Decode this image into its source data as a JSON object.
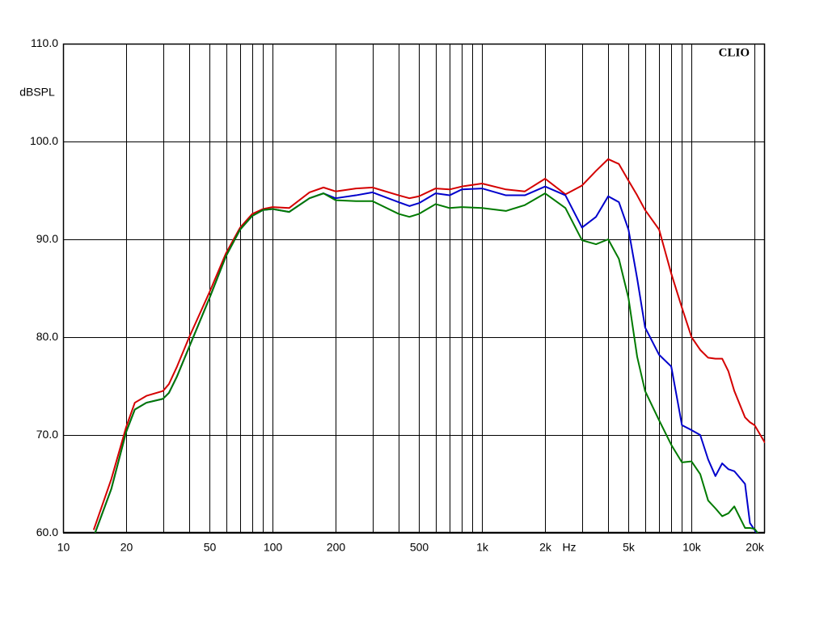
{
  "chart_data": {
    "type": "line",
    "xscale": "log",
    "grid": true,
    "ylabel": "dBSPL",
    "xunit": "Hz",
    "watermark": "CLIO",
    "xlim": [
      10,
      22400
    ],
    "ylim": [
      60,
      110
    ],
    "xticks": [
      10,
      20,
      50,
      100,
      200,
      500,
      {
        "value": 1000,
        "label": "1k"
      },
      {
        "value": 2000,
        "label": "2k"
      },
      {
        "value": 5000,
        "label": "5k"
      },
      {
        "value": 10000,
        "label": "10k"
      },
      {
        "value": 20000,
        "label": "20k"
      }
    ],
    "xgrid": [
      30,
      40,
      60,
      70,
      80,
      90,
      300,
      400,
      600,
      700,
      800,
      900,
      3000,
      4000,
      6000,
      7000,
      8000,
      9000
    ],
    "yticks": [
      {
        "value": 60,
        "label": "60.0"
      },
      {
        "value": 70,
        "label": "70.0"
      },
      {
        "value": 80,
        "label": "80.0"
      },
      {
        "value": 90,
        "label": "90.0"
      },
      {
        "value": 100,
        "label": "100.0"
      },
      {
        "value": 110,
        "label": "110.0"
      }
    ],
    "x": [
      14,
      17,
      20,
      22,
      25,
      30,
      32,
      35,
      40,
      50,
      60,
      70,
      80,
      90,
      100,
      120,
      150,
      175,
      200,
      250,
      300,
      400,
      450,
      500,
      600,
      700,
      800,
      1000,
      1300,
      1600,
      2000,
      2500,
      3000,
      3500,
      4000,
      4500,
      5000,
      5500,
      6000,
      7000,
      8000,
      9000,
      10000,
      11000,
      12000,
      13000,
      14000,
      15000,
      16000,
      18000,
      19000,
      20000,
      22400
    ],
    "series": [
      {
        "color": "#d40000",
        "values": [
          60.3,
          65.5,
          70.8,
          73.3,
          74,
          74.5,
          75.2,
          77,
          80,
          84.6,
          88.6,
          91.2,
          92.6,
          93.1,
          93.3,
          93.2,
          94.8,
          95.3,
          94.9,
          95.2,
          95.3,
          94.5,
          94.2,
          94.4,
          95.2,
          95.1,
          95.4,
          95.7,
          95.1,
          94.9,
          96.2,
          94.6,
          95.5,
          97,
          98.2,
          97.7,
          96,
          94.5,
          93,
          91,
          86.5,
          83,
          80,
          78.7,
          77.9,
          77.8,
          77.8,
          76.5,
          74.5,
          71.8,
          71.3,
          71,
          69.2
        ]
      },
      {
        "color": "#0000cc",
        "values": [
          59.6,
          64.5,
          70.3,
          72.6,
          73.3,
          73.7,
          74.3,
          76,
          79,
          84,
          88.3,
          91,
          92.4,
          93,
          93.1,
          92.8,
          94.2,
          94.7,
          94.2,
          94.5,
          94.8,
          93.8,
          93.4,
          93.7,
          94.7,
          94.5,
          95.1,
          95.2,
          94.5,
          94.5,
          95.4,
          94.5,
          91.2,
          92.3,
          94.4,
          93.8,
          91,
          86,
          81,
          78.2,
          77,
          71,
          70.5,
          70,
          67.5,
          65.8,
          67.1,
          66.5,
          66.3,
          65,
          61,
          60.3,
          58.5
        ]
      },
      {
        "color": "#007a00",
        "values": [
          59.6,
          64.5,
          70.3,
          72.6,
          73.3,
          73.7,
          74.3,
          76,
          79,
          84,
          88.3,
          91,
          92.4,
          93,
          93.1,
          92.8,
          94.2,
          94.7,
          94,
          93.9,
          93.9,
          92.6,
          92.3,
          92.6,
          93.6,
          93.2,
          93.3,
          93.2,
          92.9,
          93.5,
          94.7,
          93.2,
          89.9,
          89.5,
          90,
          88,
          84,
          78,
          74.5,
          71.5,
          69,
          67.2,
          67.3,
          66,
          63.3,
          62.5,
          61.7,
          62,
          62.7,
          60.5,
          60.5,
          60.4,
          59
        ]
      }
    ]
  }
}
